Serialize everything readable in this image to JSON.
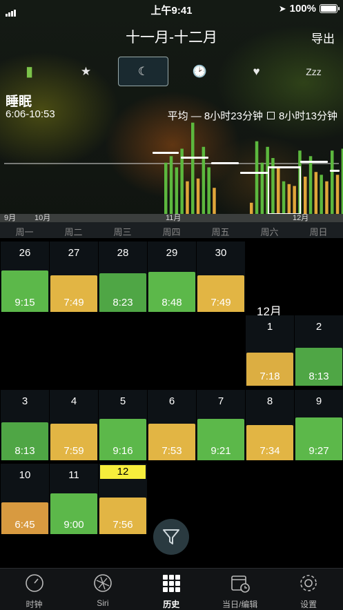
{
  "status": {
    "time": "上午9:41",
    "battery": "100%"
  },
  "header": {
    "title": "十一月-十二月",
    "export": "导出"
  },
  "categories": [
    {
      "icon": "battery-can-icon",
      "glyph": "▮",
      "active": false
    },
    {
      "icon": "star-icon",
      "glyph": "★",
      "active": false
    },
    {
      "icon": "moon-icon",
      "glyph": "☾",
      "active": true
    },
    {
      "icon": "clock-icon",
      "glyph": "🕑",
      "active": false
    },
    {
      "icon": "heart-icon",
      "glyph": "♥",
      "active": false
    },
    {
      "icon": "zzz-icon",
      "glyph": "Zzz",
      "active": false
    }
  ],
  "section": {
    "title": "睡眠",
    "range": "6:06-10:53",
    "avg_label": "平均 — 8小时23分钟",
    "avg_box": "8小时13分钟"
  },
  "chart_data": {
    "type": "bar",
    "month_labels": [
      "9月",
      "10月",
      "11月",
      "12月"
    ],
    "weekdays": [
      "周一",
      "周二",
      "周三",
      "周四",
      "周五",
      "周六",
      "周日"
    ],
    "colors": {
      "green": "#5cb83e",
      "orange": "#e0a63a"
    },
    "bars": [
      {
        "h": 0.55,
        "c": "green"
      },
      {
        "h": 0.62,
        "c": "green"
      },
      {
        "h": 0.5,
        "c": "green"
      },
      {
        "h": 0.7,
        "c": "green"
      },
      {
        "h": 0.35,
        "c": "orange"
      },
      {
        "h": 0.98,
        "c": "green"
      },
      {
        "h": 0.38,
        "c": "orange"
      },
      {
        "h": 0.72,
        "c": "green"
      },
      {
        "h": 0.5,
        "c": "green"
      },
      {
        "h": 0.28,
        "c": "orange"
      },
      {
        "h": 0.12,
        "c": "orange"
      },
      {
        "h": 0.78,
        "c": "green"
      },
      {
        "h": 0.55,
        "c": "green"
      },
      {
        "h": 0.72,
        "c": "green"
      },
      {
        "h": 0.6,
        "c": "green"
      },
      {
        "h": 0.5,
        "c": "orange"
      },
      {
        "h": 0.35,
        "c": "green"
      },
      {
        "h": 0.32,
        "c": "orange"
      },
      {
        "h": 0.3,
        "c": "orange"
      },
      {
        "h": 0.68,
        "c": "green"
      },
      {
        "h": 0.4,
        "c": "orange"
      },
      {
        "h": 0.62,
        "c": "green"
      },
      {
        "h": 0.45,
        "c": "orange"
      },
      {
        "h": 0.42,
        "c": "green"
      },
      {
        "h": 0.35,
        "c": "orange"
      },
      {
        "h": 0.68,
        "c": "green"
      },
      {
        "h": 0.42,
        "c": "orange"
      },
      {
        "h": 0.7,
        "c": "green"
      },
      {
        "h": 0.42,
        "c": "orange"
      },
      {
        "h": 0.72,
        "c": "green"
      },
      {
        "h": 0.7,
        "c": "green"
      },
      {
        "h": 0.4,
        "c": "orange"
      },
      {
        "h": 0.5,
        "c": "green"
      }
    ]
  },
  "calendar": {
    "month_label": "12月",
    "days": [
      {
        "day": "26",
        "time": "9:15",
        "color": "#5cb84a",
        "fill": 0.68
      },
      {
        "day": "27",
        "time": "7:49",
        "color": "#e2b544",
        "fill": 0.6
      },
      {
        "day": "28",
        "time": "8:23",
        "color": "#4fa645",
        "fill": 0.64
      },
      {
        "day": "29",
        "time": "8:48",
        "color": "#5cb84a",
        "fill": 0.66
      },
      {
        "day": "30",
        "time": "7:49",
        "color": "#e2b544",
        "fill": 0.6
      },
      {
        "day": "1",
        "time": "7:18",
        "color": "#dcae42",
        "fill": 0.55
      },
      {
        "day": "2",
        "time": "8:13",
        "color": "#4fa645",
        "fill": 0.62
      },
      {
        "day": "3",
        "time": "8:13",
        "color": "#4fa645",
        "fill": 0.62
      },
      {
        "day": "4",
        "time": "7:59",
        "color": "#e2b544",
        "fill": 0.6
      },
      {
        "day": "5",
        "time": "9:16",
        "color": "#5cb84a",
        "fill": 0.68
      },
      {
        "day": "6",
        "time": "7:53",
        "color": "#e2b544",
        "fill": 0.6
      },
      {
        "day": "7",
        "time": "9:21",
        "color": "#5cb84a",
        "fill": 0.68
      },
      {
        "day": "8",
        "time": "7:34",
        "color": "#e2b544",
        "fill": 0.58
      },
      {
        "day": "9",
        "time": "9:27",
        "color": "#5cb84a",
        "fill": 0.7
      },
      {
        "day": "10",
        "time": "6:45",
        "color": "#d89a40",
        "fill": 0.52
      },
      {
        "day": "11",
        "time": "9:00",
        "color": "#5cb84a",
        "fill": 0.67
      },
      {
        "day": "12",
        "time": "7:56",
        "color": "#e2b544",
        "fill": 0.6,
        "today": true
      }
    ]
  },
  "tabbar": [
    {
      "label": "时钟",
      "icon": "clock-dial-icon"
    },
    {
      "label": "Siri",
      "icon": "siri-icon"
    },
    {
      "label": "历史",
      "icon": "grid-icon",
      "active": true
    },
    {
      "label": "当日/编辑",
      "icon": "calendar-clock-icon"
    },
    {
      "label": "设置",
      "icon": "gear-icon"
    }
  ]
}
